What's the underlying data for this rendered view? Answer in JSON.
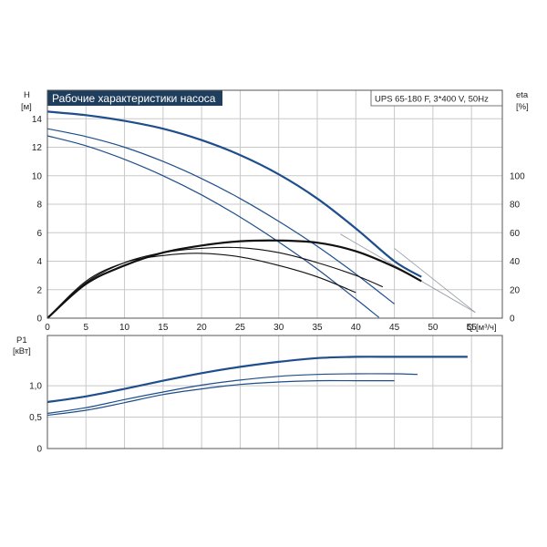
{
  "chart_title": "Рабочие характеристики насоса",
  "model": "UPS 65-180 F, 3*400 V, 50Hz",
  "colors": {
    "blue": "#1f4e8c",
    "black": "#111111",
    "title_bg": "#1f3d5c",
    "grid": "#c8c8c8"
  },
  "chart_data": [
    {
      "type": "line",
      "panel": "head",
      "ylabel": "H",
      "yunit": "[м]",
      "y2label": "eta",
      "y2unit": "[%]",
      "xlabel": "Q [м³/ч]",
      "xlim": [
        0,
        59
      ],
      "ylim": [
        0,
        16
      ],
      "y2lim": [
        0,
        160
      ],
      "grid": true,
      "x_ticks": [
        0,
        5,
        10,
        15,
        20,
        25,
        30,
        35,
        40,
        45,
        50,
        55
      ],
      "y_ticks": [
        0,
        2,
        4,
        6,
        8,
        10,
        12,
        14
      ],
      "y2_ticks": [
        0,
        20,
        40,
        60,
        80,
        100
      ],
      "head_curves": [
        {
          "x": [
            0,
            5,
            10,
            15,
            20,
            25,
            30,
            35,
            40,
            45,
            48.5
          ],
          "y": [
            14.5,
            14.25,
            13.85,
            13.3,
            12.5,
            11.45,
            10.1,
            8.4,
            6.3,
            4.0,
            2.9
          ],
          "color": "blue",
          "width": 2.2
        },
        {
          "x": [
            0,
            5,
            10,
            15,
            20,
            25,
            30,
            35,
            40,
            45
          ],
          "y": [
            13.3,
            12.75,
            12.0,
            11.0,
            9.8,
            8.4,
            6.8,
            5.05,
            3.1,
            1.0
          ],
          "color": "blue",
          "width": 1.2
        },
        {
          "x": [
            0,
            5,
            10,
            15,
            20,
            25,
            30,
            35,
            40,
            43
          ],
          "y": [
            12.8,
            12.1,
            11.15,
            10.0,
            8.65,
            7.1,
            5.35,
            3.45,
            1.35,
            0.05
          ],
          "color": "blue",
          "width": 1.2
        }
      ],
      "efficiency_curves": [
        {
          "x": [
            0,
            5,
            10,
            15,
            20,
            25,
            30,
            35,
            40,
            45,
            48.5
          ],
          "y": [
            0,
            24,
            37,
            46,
            51,
            54,
            54.5,
            53,
            47,
            36,
            26
          ],
          "color": "black",
          "width": 2.2
        },
        {
          "x": [
            0,
            5,
            10,
            15,
            20,
            25,
            30,
            35,
            40,
            43.5
          ],
          "y": [
            0,
            25,
            39,
            46,
            49,
            49.5,
            46,
            39,
            30,
            22
          ],
          "color": "black",
          "width": 1.1
        },
        {
          "x": [
            0,
            5,
            10,
            15,
            20,
            25,
            30,
            35,
            40
          ],
          "y": [
            0,
            26,
            39,
            44,
            45.5,
            43,
            37,
            29,
            18
          ],
          "color": "black",
          "width": 1.1
        }
      ],
      "system_lines": [
        {
          "x": [
            45,
            55.5
          ],
          "y": [
            4.9,
            0.4
          ]
        },
        {
          "x": [
            38,
            55.5
          ],
          "y": [
            5.9,
            0.4
          ]
        }
      ]
    },
    {
      "type": "line",
      "panel": "power",
      "ylabel": "P1",
      "yunit": "[кВт]",
      "xlim": [
        0,
        59
      ],
      "ylim": [
        0,
        1.8
      ],
      "y_ticks": [
        0,
        0.5,
        1.0
      ],
      "y_tick_labels": [
        "0",
        "0,5",
        "1,0"
      ],
      "grid": true,
      "series": [
        {
          "x": [
            0,
            5,
            10,
            15,
            20,
            25,
            30,
            35,
            40,
            45,
            48.5,
            54.5
          ],
          "y": [
            0.74,
            0.83,
            0.95,
            1.08,
            1.2,
            1.3,
            1.38,
            1.44,
            1.46,
            1.46,
            1.46,
            1.46
          ],
          "color": "blue",
          "width": 2.2
        },
        {
          "x": [
            0,
            5,
            10,
            15,
            20,
            25,
            30,
            35,
            40,
            45,
            48
          ],
          "y": [
            0.56,
            0.65,
            0.78,
            0.9,
            1.01,
            1.09,
            1.15,
            1.18,
            1.19,
            1.19,
            1.18
          ],
          "color": "blue",
          "width": 1.2
        },
        {
          "x": [
            0,
            5,
            10,
            15,
            20,
            25,
            30,
            35,
            40,
            45
          ],
          "y": [
            0.53,
            0.61,
            0.73,
            0.86,
            0.95,
            1.02,
            1.06,
            1.08,
            1.08,
            1.08
          ],
          "color": "blue",
          "width": 1.2
        }
      ]
    }
  ]
}
